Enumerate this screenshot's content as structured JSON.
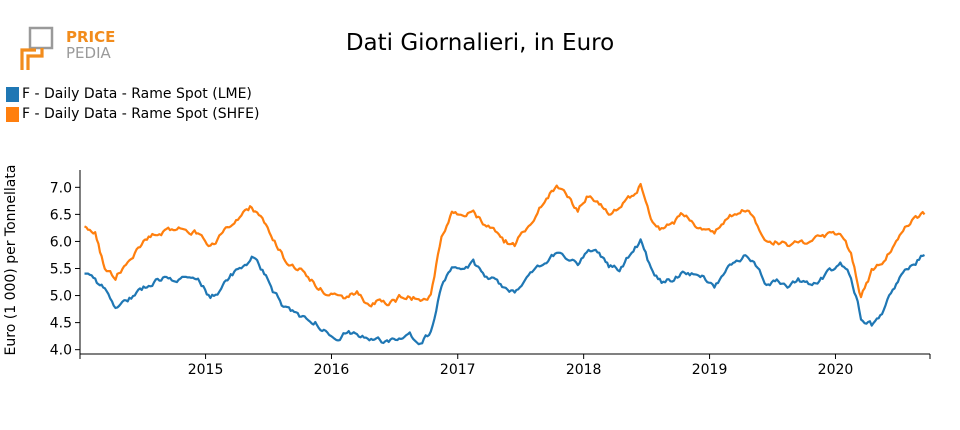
{
  "logo": {
    "line1": "PRICE",
    "line2": "PEDIA"
  },
  "colors": {
    "lme": "#1f77b4",
    "shfe": "#ff7f0e",
    "logo_orange": "#f28c1c",
    "logo_gray": "#9a9a9a"
  },
  "chart_data": {
    "type": "line",
    "title": "Dati Giornalieri, in Euro",
    "ylabel": "Euro (1 000) per Tonnellata",
    "xlabel": "",
    "ylim": [
      3.92,
      7.32
    ],
    "xlim": [
      "2014-01-02",
      "2020-10-01"
    ],
    "y_ticks": [
      "7.0",
      "6.5",
      "6.0",
      "5.5",
      "5.0",
      "4.5",
      "4.0"
    ],
    "x_ticks": [
      "2015",
      "2016",
      "2017",
      "2018",
      "2019",
      "2020"
    ],
    "legend_position": "top-left",
    "grid": false,
    "series": [
      {
        "name": "F - Daily Data - Rame Spot (LME)",
        "color": "#1f77b4",
        "x": [
          "2014-01",
          "2014-02",
          "2014-03",
          "2014-04",
          "2014-05",
          "2014-06",
          "2014-07",
          "2014-08",
          "2014-09",
          "2014-10",
          "2014-11",
          "2014-12",
          "2015-01",
          "2015-02",
          "2015-03",
          "2015-04",
          "2015-05",
          "2015-06",
          "2015-07",
          "2015-08",
          "2015-09",
          "2015-10",
          "2015-11",
          "2015-12",
          "2016-01",
          "2016-02",
          "2016-03",
          "2016-04",
          "2016-05",
          "2016-06",
          "2016-07",
          "2016-08",
          "2016-09",
          "2016-10",
          "2016-11",
          "2016-12",
          "2017-01",
          "2017-02",
          "2017-03",
          "2017-04",
          "2017-05",
          "2017-06",
          "2017-07",
          "2017-08",
          "2017-09",
          "2017-10",
          "2017-11",
          "2017-12",
          "2018-01",
          "2018-02",
          "2018-03",
          "2018-04",
          "2018-05",
          "2018-06",
          "2018-07",
          "2018-08",
          "2018-09",
          "2018-10",
          "2018-11",
          "2018-12",
          "2019-01",
          "2019-02",
          "2019-03",
          "2019-04",
          "2019-05",
          "2019-06",
          "2019-07",
          "2019-08",
          "2019-09",
          "2019-10",
          "2019-11",
          "2019-12",
          "2020-01",
          "2020-02",
          "2020-03",
          "2020-04",
          "2020-05",
          "2020-06",
          "2020-07",
          "2020-08",
          "2020-09"
        ],
        "values": [
          5.4,
          5.28,
          5.1,
          4.8,
          4.9,
          5.05,
          5.2,
          5.3,
          5.35,
          5.3,
          5.3,
          5.25,
          4.95,
          5.1,
          5.35,
          5.55,
          5.7,
          5.45,
          5.1,
          4.8,
          4.65,
          4.6,
          4.5,
          4.35,
          4.25,
          4.3,
          4.35,
          4.15,
          4.2,
          4.1,
          4.25,
          4.3,
          4.15,
          4.3,
          5.2,
          5.45,
          5.5,
          5.6,
          5.4,
          5.3,
          5.15,
          5.1,
          5.25,
          5.5,
          5.65,
          5.8,
          5.7,
          5.6,
          5.85,
          5.8,
          5.55,
          5.5,
          5.75,
          6.0,
          5.5,
          5.25,
          5.3,
          5.45,
          5.4,
          5.35,
          5.2,
          5.45,
          5.6,
          5.75,
          5.55,
          5.2,
          5.25,
          5.15,
          5.3,
          5.2,
          5.3,
          5.45,
          5.6,
          5.35,
          4.6,
          4.45,
          4.7,
          5.1,
          5.4,
          5.6,
          5.75
        ]
      },
      {
        "name": "F - Daily Data - Rame Spot (SHFE)",
        "color": "#ff7f0e",
        "x": [
          "2014-01",
          "2014-02",
          "2014-03",
          "2014-04",
          "2014-05",
          "2014-06",
          "2014-07",
          "2014-08",
          "2014-09",
          "2014-10",
          "2014-11",
          "2014-12",
          "2015-01",
          "2015-02",
          "2015-03",
          "2015-04",
          "2015-05",
          "2015-06",
          "2015-07",
          "2015-08",
          "2015-09",
          "2015-10",
          "2015-11",
          "2015-12",
          "2016-01",
          "2016-02",
          "2016-03",
          "2016-04",
          "2016-05",
          "2016-06",
          "2016-07",
          "2016-08",
          "2016-09",
          "2016-10",
          "2016-11",
          "2016-12",
          "2017-01",
          "2017-02",
          "2017-03",
          "2017-04",
          "2017-05",
          "2017-06",
          "2017-07",
          "2017-08",
          "2017-09",
          "2017-10",
          "2017-11",
          "2017-12",
          "2018-01",
          "2018-02",
          "2018-03",
          "2018-04",
          "2018-05",
          "2018-06",
          "2018-07",
          "2018-08",
          "2018-09",
          "2018-10",
          "2018-11",
          "2018-12",
          "2019-01",
          "2019-02",
          "2019-03",
          "2019-04",
          "2019-05",
          "2019-06",
          "2019-07",
          "2019-08",
          "2019-09",
          "2019-10",
          "2019-11",
          "2019-12",
          "2020-01",
          "2020-02",
          "2020-03",
          "2020-04",
          "2020-05",
          "2020-06",
          "2020-07",
          "2020-08",
          "2020-09"
        ],
        "values": [
          6.3,
          6.15,
          5.5,
          5.35,
          5.6,
          5.85,
          6.05,
          6.15,
          6.2,
          6.25,
          6.2,
          6.15,
          5.9,
          6.1,
          6.3,
          6.5,
          6.65,
          6.4,
          6.05,
          5.7,
          5.5,
          5.45,
          5.2,
          5.05,
          5.0,
          4.95,
          5.05,
          4.85,
          4.9,
          4.8,
          4.95,
          5.0,
          4.9,
          5.0,
          6.1,
          6.5,
          6.45,
          6.55,
          6.35,
          6.25,
          6.0,
          5.95,
          6.2,
          6.5,
          6.8,
          7.0,
          6.8,
          6.6,
          6.85,
          6.7,
          6.55,
          6.6,
          6.8,
          7.05,
          6.45,
          6.25,
          6.3,
          6.5,
          6.35,
          6.25,
          6.2,
          6.35,
          6.55,
          6.6,
          6.35,
          6.05,
          6.0,
          5.95,
          6.05,
          6.0,
          6.05,
          6.1,
          6.1,
          5.8,
          5.0,
          5.45,
          5.6,
          5.9,
          6.25,
          6.45,
          6.5
        ]
      }
    ]
  }
}
